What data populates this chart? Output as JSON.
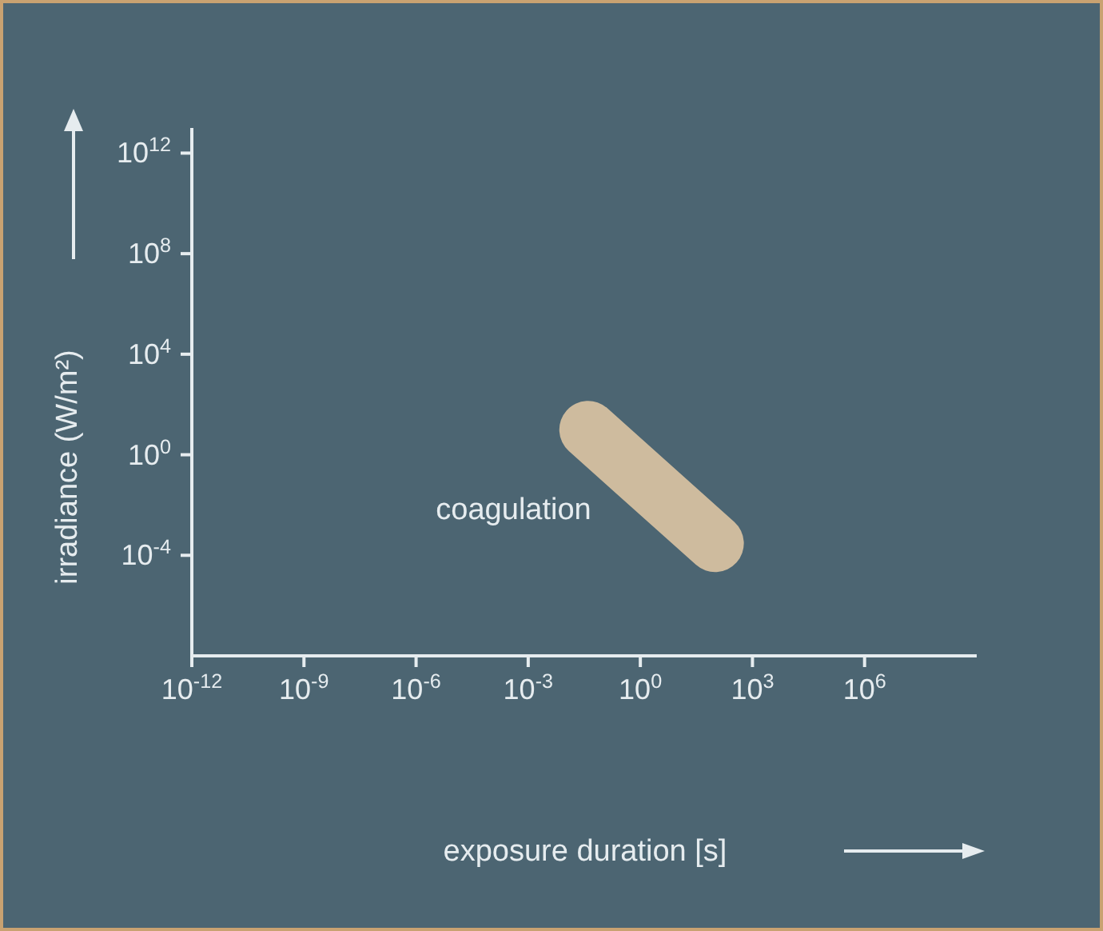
{
  "chart_data": {
    "type": "line",
    "xlabel": "exposure duration  [s]",
    "ylabel": "irradiance  (W/m²)",
    "log": "xy",
    "xlim": [
      1e-12,
      1000000000.0
    ],
    "ylim": [
      1e-08,
      10000000000000.0
    ],
    "xticks": [
      {
        "value": 1e-12,
        "label": "10$^{-12}$"
      },
      {
        "value": 1e-09,
        "label": "10$^{-9}$"
      },
      {
        "value": 1e-06,
        "label": "10$^{-6}$"
      },
      {
        "value": 0.001,
        "label": "10$^{-3}$"
      },
      {
        "value": 1,
        "label": "10$^{0}$"
      },
      {
        "value": 1000,
        "label": "10$^{3}$"
      },
      {
        "value": 1000000,
        "label": "10$^{6}$"
      }
    ],
    "yticks": [
      {
        "value": 0.0001,
        "label": "10$^{-4}$"
      },
      {
        "value": 1,
        "label": "10$^{0}$"
      },
      {
        "value": 10000,
        "label": "10$^{4}$"
      },
      {
        "value": 100000000.0,
        "label": "10$^{8}$"
      },
      {
        "value": 1000000000000.0,
        "label": "10$^{12}$"
      }
    ],
    "series": [
      {
        "name": "coagulation",
        "color": "#d9c2a2",
        "x": [
          0.04,
          100
        ],
        "values": [
          10,
          0.0003
        ]
      }
    ]
  }
}
